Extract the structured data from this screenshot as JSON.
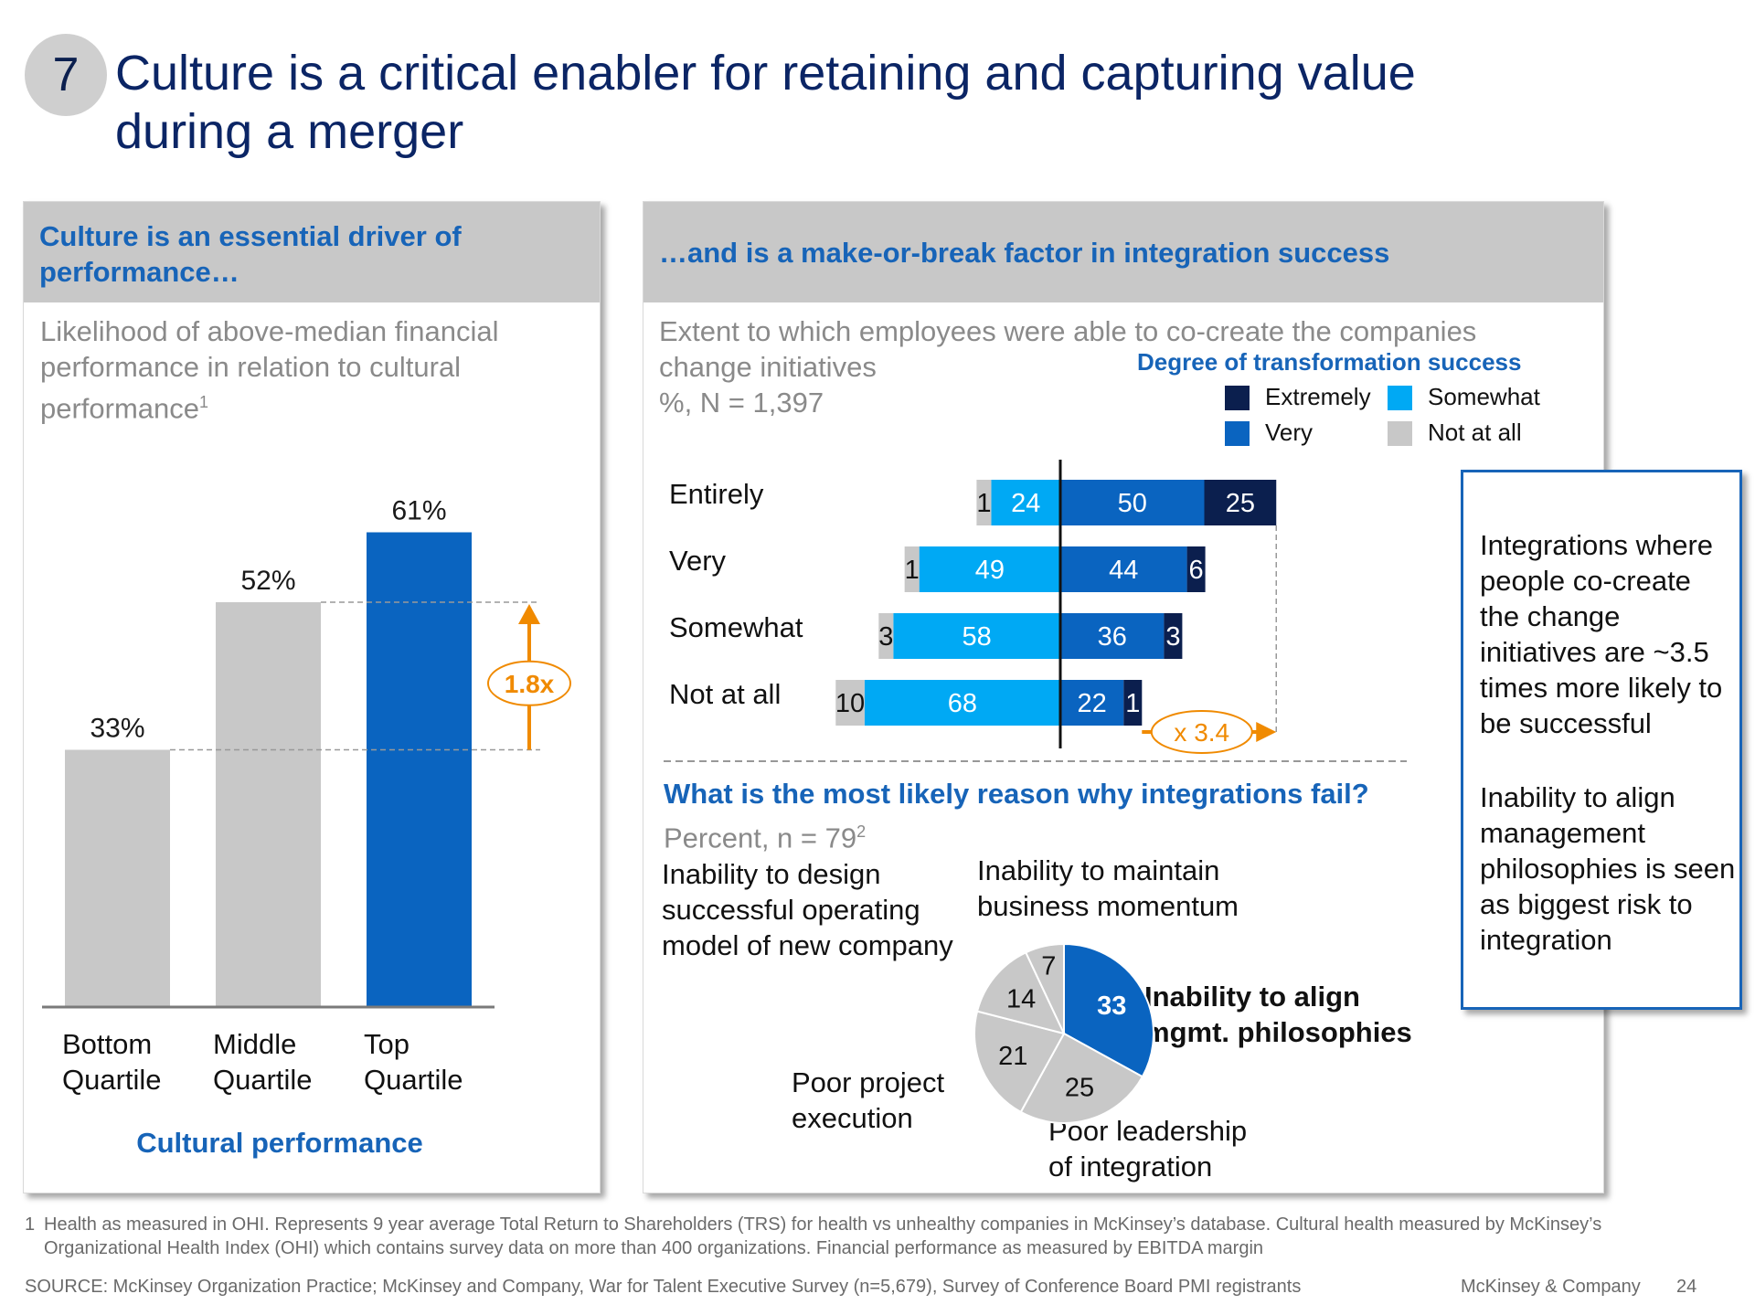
{
  "header": {
    "slide_number": "7",
    "title": "Culture is a critical enabler for retaining and capturing value during a merger"
  },
  "left_panel": {
    "heading": "Culture is an essential driver of performance…",
    "subtitle": "Likelihood of above-median financial performance in relation to cultural performance",
    "subtitle_footnote": "1",
    "x_axis_title": "Cultural performance",
    "multiplier_label": "1.8x"
  },
  "right_panel": {
    "heading": "…and is a make-or-break factor in integration success",
    "subtitle_line1": "Extent to which employees were able to co-create the companies change initiatives",
    "subtitle_line2": "%, N = 1,397",
    "legend_title": "Degree of transformation success",
    "multiplier_label": "x 3.4",
    "pie_question": "What is the most likely reason why integrations fail?",
    "pie_subtitle": "Percent, n = 79",
    "pie_subtitle_footnote": "2"
  },
  "callout": {
    "para1": "Integrations where people co-create the change initiatives are ~3.5 times more likely to be successful",
    "para2": "Inability to align management philosophies is seen as biggest risk to integration"
  },
  "footer": {
    "footnote_num": "1",
    "footnote_text": "Health as measured in OHI.  Represents 9 year average Total Return to Shareholders (TRS) for health vs unhealthy companies in McKinsey’s database. Cultural health measured by McKinsey’s Organizational Health Index (OHI) which contains survey data on more than 400 organizations.  Financial performance as measured by EBITDA margin",
    "source": "SOURCE: McKinsey Organization Practice; McKinsey and Company, War for Talent Executive Survey (n=5,679), Survey of Conference Board PMI registrants",
    "brand": "McKinsey & Company",
    "page": "24"
  },
  "chart_data": [
    {
      "type": "bar",
      "categories": [
        "Bottom Quartile",
        "Middle Quartile",
        "Top Quartile"
      ],
      "values": [
        33,
        52,
        61
      ],
      "value_labels": [
        "33%",
        "52%",
        "61%"
      ],
      "colors": [
        "#c8c8c8",
        "#c8c8c8",
        "#0a64c0"
      ],
      "xlabel": "Cultural performance",
      "ylim": [
        0,
        70
      ]
    },
    {
      "type": "bar",
      "orientation": "horizontal-diverging",
      "categories": [
        "Entirely",
        "Very",
        "Somewhat",
        "Not at all"
      ],
      "legend_title": "Degree of transformation success",
      "series": [
        {
          "name": "Not at all",
          "color": "#c8c8c8",
          "side": "left",
          "values": [
            1,
            1,
            3,
            10
          ]
        },
        {
          "name": "Somewhat",
          "color": "#00a9f4",
          "side": "left",
          "values": [
            24,
            49,
            58,
            68
          ]
        },
        {
          "name": "Very",
          "color": "#0a64c0",
          "side": "right",
          "values": [
            50,
            44,
            36,
            22
          ]
        },
        {
          "name": "Extremely",
          "color": "#0b1f4e",
          "side": "right",
          "values": [
            25,
            6,
            3,
            1
          ]
        }
      ]
    },
    {
      "type": "pie",
      "slices": [
        {
          "label": "Inability to align mgmt. philosophies",
          "value": 33,
          "color": "#0a64c0"
        },
        {
          "label": "Poor leadership of integration",
          "value": 25,
          "color": "#c8c8c8"
        },
        {
          "label": "Poor project execution",
          "value": 21,
          "color": "#c8c8c8"
        },
        {
          "label": "Inability to design successful operating model of new company",
          "value": 14,
          "color": "#c8c8c8"
        },
        {
          "label": "Inability to maintain business momentum",
          "value": 7,
          "color": "#c8c8c8"
        }
      ]
    }
  ]
}
